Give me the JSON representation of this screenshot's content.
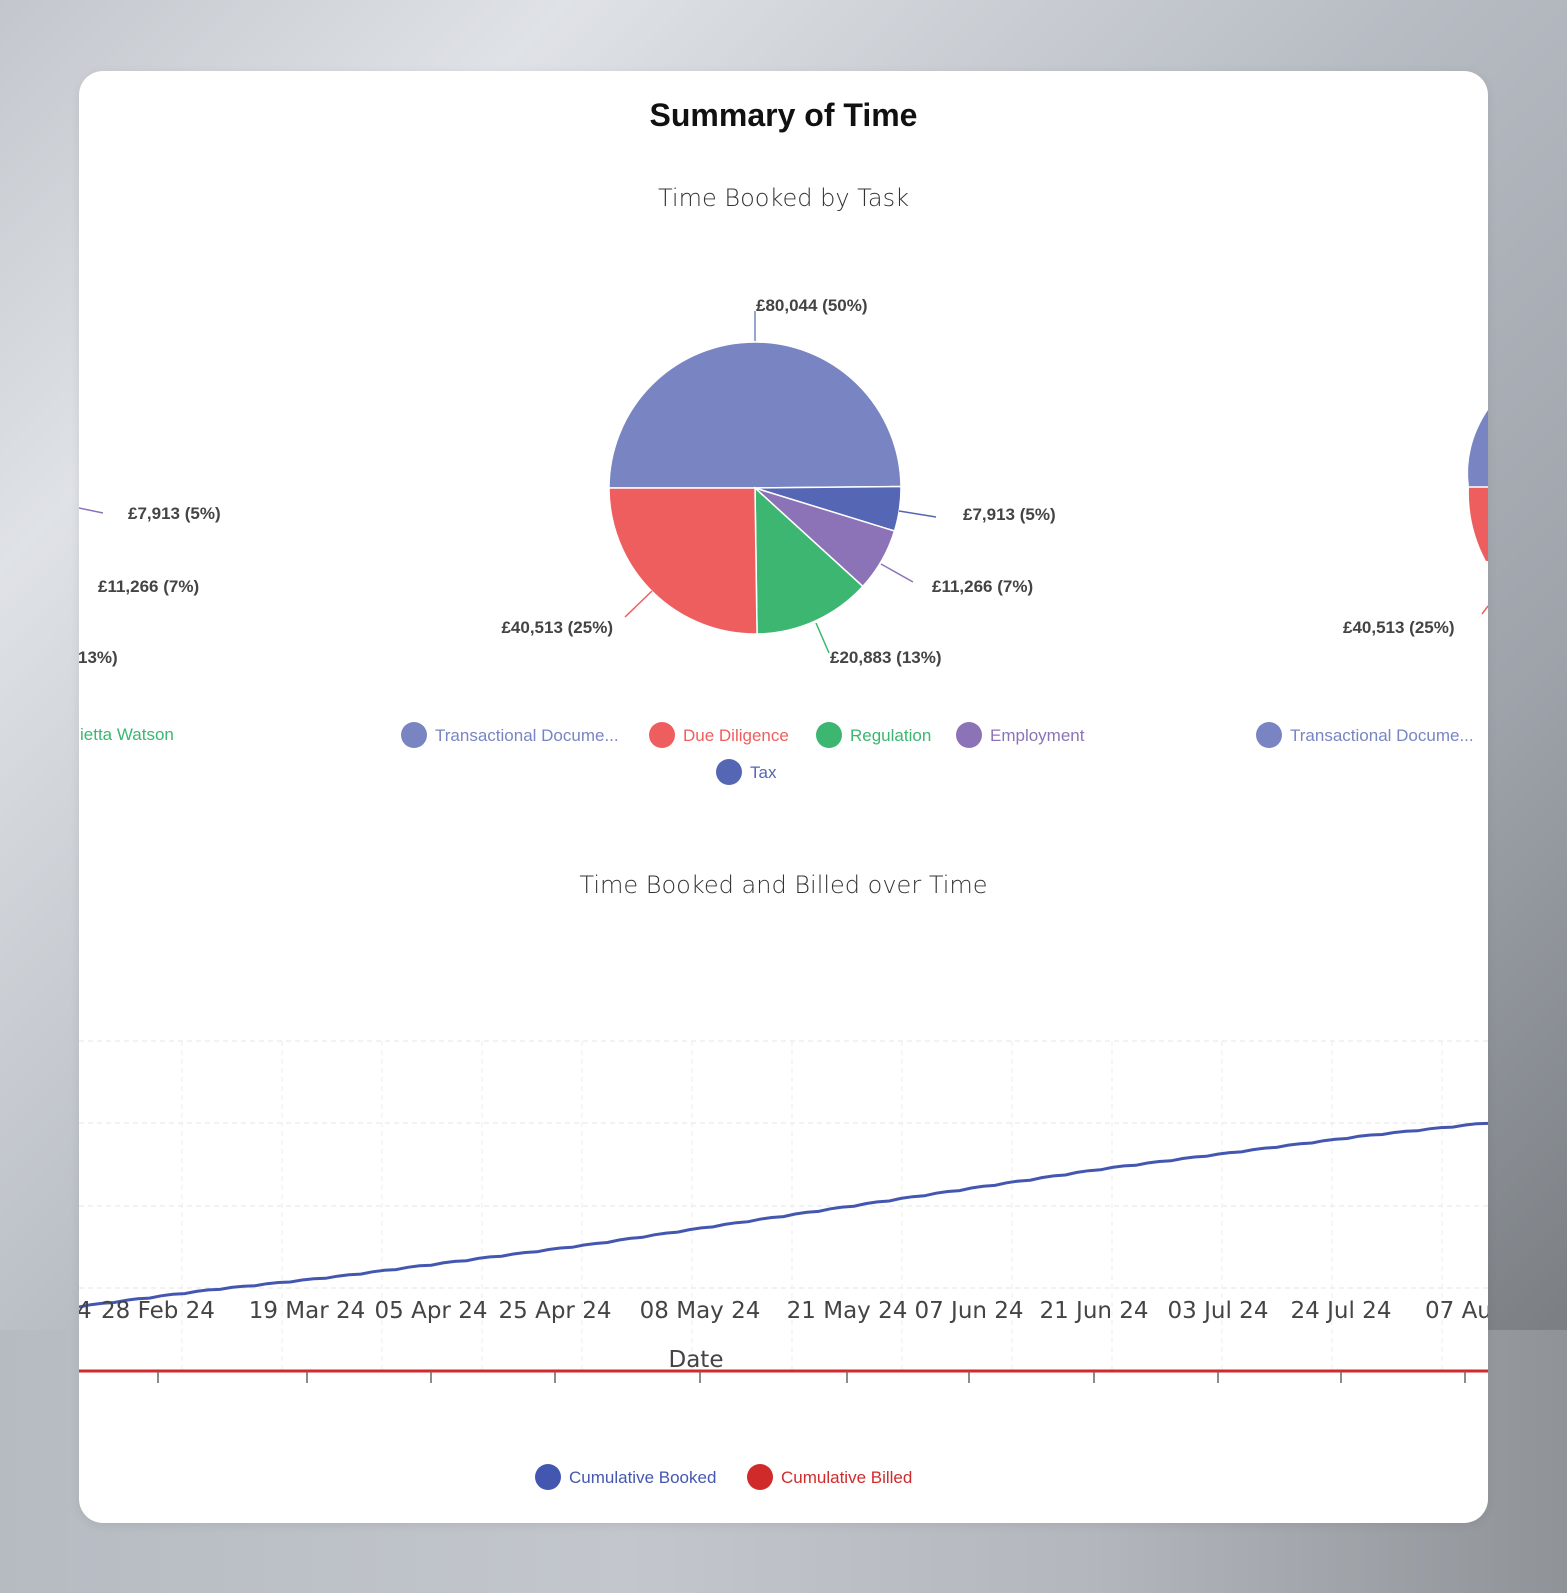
{
  "page": {
    "title": "Summary of Time"
  },
  "colors": {
    "transactional": "#7885c2",
    "due_diligence": "#ef5e5e",
    "regulation": "#3cb670",
    "employment": "#8c73b8",
    "tax": "#5566b4",
    "watson": "#3cb670",
    "booked": "#4457b0",
    "billed": "#d12a2a"
  },
  "pie_chart": {
    "title": "Time Booked by Task",
    "left_partial": {
      "labels": [
        "£7,913 (5%)",
        "£11,266 (7%)",
        "13%)"
      ],
      "legend": "ietta Watson"
    },
    "right_partial": {
      "labels": [
        "£40,513 (25%)"
      ],
      "legend": "Transactional Docume..."
    }
  },
  "line_chart": {
    "title": "Time Booked and Billed over Time",
    "partial_tick_left": "4",
    "partial_tick_right": "07 Au",
    "legend": [
      "Cumulative Booked",
      "Cumulative Billed"
    ]
  },
  "chart_data": [
    {
      "type": "pie",
      "title": "Time Booked by Task",
      "slices": [
        {
          "name": "Transactional Docume...",
          "value": 80044,
          "percent": 50,
          "label": "£80,044 (50%)",
          "color": "#7885c2"
        },
        {
          "name": "Tax",
          "value": 7913,
          "percent": 5,
          "label": "£7,913 (5%)",
          "color": "#5566b4"
        },
        {
          "name": "Employment",
          "value": 11266,
          "percent": 7,
          "label": "£11,266 (7%)",
          "color": "#8c73b8"
        },
        {
          "name": "Regulation",
          "value": 20883,
          "percent": 13,
          "label": "£20,883 (13%)",
          "color": "#3cb670"
        },
        {
          "name": "Due Diligence",
          "value": 40513,
          "percent": 25,
          "label": "£40,513 (25%)",
          "color": "#ef5e5e"
        }
      ],
      "legend": [
        "Transactional Docume...",
        "Due Diligence",
        "Regulation",
        "Employment",
        "Tax"
      ],
      "legend_position": "bottom"
    },
    {
      "type": "line",
      "title": "Time Booked and Billed over Time",
      "xlabel": "Date",
      "ylabel": "",
      "grid": true,
      "x_ticks": [
        "28 Feb 24",
        "19 Mar 24",
        "05 Apr 24",
        "25 Apr 24",
        "08 May 24",
        "21 May 24",
        "07 Jun 24",
        "21 Jun 24",
        "03 Jul 24",
        "24 Jul 24"
      ],
      "series": [
        {
          "name": "Cumulative Booked",
          "color": "#4457b0",
          "values": [
            0.24,
            0.3,
            0.35,
            0.41,
            0.47,
            0.54,
            0.61,
            0.68,
            0.75,
            0.81,
            0.87,
            0.92
          ]
        },
        {
          "name": "Cumulative Billed",
          "color": "#d12a2a",
          "values": [
            0,
            0,
            0,
            0,
            0,
            0,
            0,
            0,
            0,
            0,
            0,
            0
          ]
        }
      ],
      "legend_position": "bottom"
    }
  ]
}
